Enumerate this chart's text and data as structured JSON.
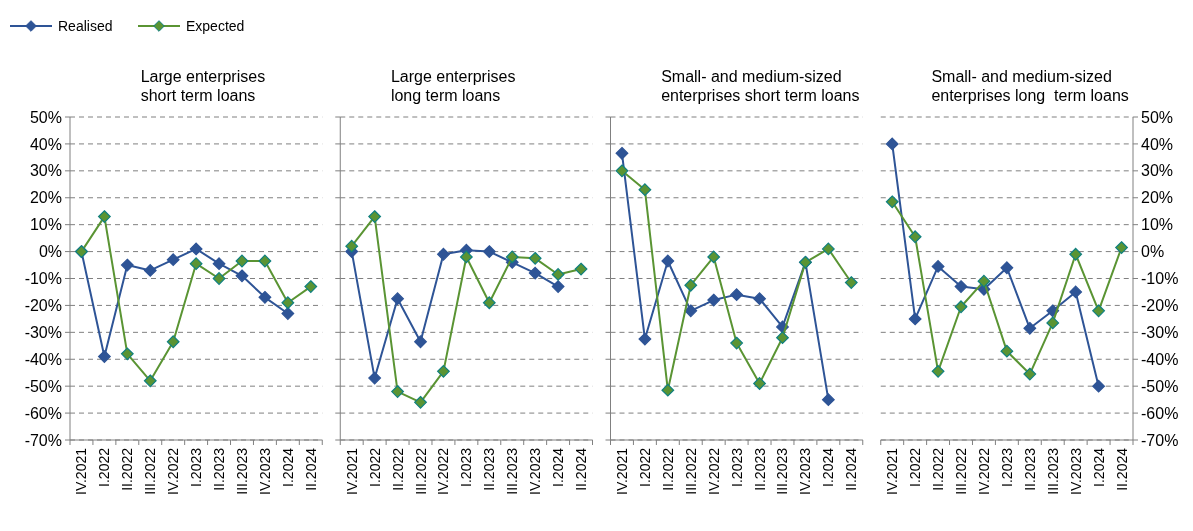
{
  "chart_data": [
    {
      "type": "line",
      "title": "Large enterprises\nshort term loans",
      "categories": [
        "IV.2021",
        "I.2022",
        "II.2022",
        "III.2022",
        "IV.2022",
        "I.2023",
        "II.2023",
        "III.2023",
        "IV.2023",
        "I.2024",
        "II.2024"
      ],
      "series": [
        {
          "name": "Realised",
          "color": "#2e5496",
          "values": [
            0,
            -39,
            -5,
            -7,
            -3,
            1,
            -4.5,
            -9,
            -17,
            -23,
            null
          ]
        },
        {
          "name": "Expected",
          "color": "#5a9433",
          "values": [
            0,
            13,
            -38,
            -48,
            -33.5,
            -4.5,
            -10,
            -3.5,
            -3.5,
            -19,
            -13
          ]
        }
      ],
      "ylim": [
        -70,
        50
      ],
      "yticks": [
        {
          "value": -70,
          "label": "-70%"
        },
        {
          "value": -60,
          "label": "-60%"
        },
        {
          "value": -50,
          "label": "-50%"
        },
        {
          "value": -40,
          "label": "-40%"
        },
        {
          "value": -30,
          "label": "-30%"
        },
        {
          "value": -20,
          "label": "-20%"
        },
        {
          "value": -10,
          "label": "-10%"
        },
        {
          "value": 0,
          "label": "0%"
        },
        {
          "value": 10,
          "label": "10%"
        },
        {
          "value": 20,
          "label": "20%"
        },
        {
          "value": 30,
          "label": "30%"
        },
        {
          "value": 40,
          "label": "40%"
        },
        {
          "value": 50,
          "label": "50%"
        }
      ],
      "grid": "y",
      "marker": "diamond",
      "legend": "top left"
    },
    {
      "type": "line",
      "title": "Large enterprises\nlong term loans",
      "categories": [
        "IV.2021",
        "I.2022",
        "II.2022",
        "III.2022",
        "IV.2022",
        "I.2023",
        "II.2023",
        "III.2023",
        "IV.2023",
        "I.2024",
        "II.2024"
      ],
      "series": [
        {
          "color": "#2e5496",
          "values": [
            0,
            -47,
            -17.5,
            -33.5,
            -1,
            0.5,
            0,
            -4,
            -8,
            -13,
            null
          ]
        },
        {
          "color": "#5a9433",
          "values": [
            2,
            13,
            -52,
            -56,
            -44.5,
            -2,
            -19,
            -2,
            -2.5,
            -8.5,
            -6.5
          ]
        }
      ],
      "ylim": [
        -70,
        50
      ],
      "yticks": [
        -70,
        -60,
        -50,
        -40,
        -30,
        -20,
        -10,
        0,
        10,
        20,
        30,
        40,
        50
      ],
      "grid": "y",
      "marker": "diamond",
      "tick_labels": "x"
    },
    {
      "type": "line",
      "title": "Small- and medium-sized\nenterprises short term loans",
      "categories": [
        "IV.2021",
        "I.2022",
        "II.2022",
        "III.2022",
        "IV.2022",
        "I.2023",
        "II.2023",
        "III.2023",
        "IV.2023",
        "I.2024",
        "II.2024"
      ],
      "series": [
        {
          "color": "#2e5496",
          "values": [
            36.5,
            -32.5,
            -3.5,
            -22,
            -18,
            -16,
            -17.5,
            -28,
            -4,
            -55,
            null
          ]
        },
        {
          "color": "#5a9433",
          "values": [
            30,
            23,
            -51.5,
            -12.5,
            -2,
            -34,
            -49,
            -32,
            -4,
            1,
            -11.5
          ]
        }
      ],
      "ylim": [
        -70,
        50
      ],
      "yticks": [
        -70,
        -60,
        -50,
        -40,
        -30,
        -20,
        -10,
        0,
        10,
        20,
        30,
        40,
        50
      ],
      "grid": "y",
      "marker": "diamond",
      "tick_labels": "x"
    },
    {
      "type": "line",
      "title": "Small- and medium-sized\nenterprises long  term loans",
      "categories": [
        "IV.2021",
        "I.2022",
        "II.2022",
        "III.2022",
        "IV.2022",
        "I.2023",
        "II.2023",
        "III.2023",
        "IV.2023",
        "I.2024",
        "II.2024"
      ],
      "series": [
        {
          "color": "#2e5496",
          "values": [
            40,
            -25,
            -5.5,
            -13,
            -14,
            -6,
            -28.5,
            -22,
            -15,
            -50,
            null
          ]
        },
        {
          "color": "#5a9433",
          "values": [
            18.5,
            5.5,
            -44.5,
            -20.5,
            -11,
            -37,
            -45.5,
            -26.5,
            -1,
            -22,
            1.5
          ]
        }
      ],
      "ylim": [
        -70,
        50
      ],
      "yticks": [
        {
          "value": -70,
          "label": "-70%"
        },
        {
          "value": -60,
          "label": "-60%"
        },
        {
          "value": -50,
          "label": "-50%"
        },
        {
          "value": -40,
          "label": "-40%"
        },
        {
          "value": -30,
          "label": "-30%"
        },
        {
          "value": -20,
          "label": "-20%"
        },
        {
          "value": -10,
          "label": "-10%"
        },
        {
          "value": 0,
          "label": "0%"
        },
        {
          "value": 10,
          "label": "10%"
        },
        {
          "value": 20,
          "label": "20%"
        },
        {
          "value": 30,
          "label": "30%"
        },
        {
          "value": 40,
          "label": "40%"
        },
        {
          "value": 50,
          "label": "50%"
        }
      ],
      "grid": "y",
      "marker": "diamond"
    }
  ]
}
